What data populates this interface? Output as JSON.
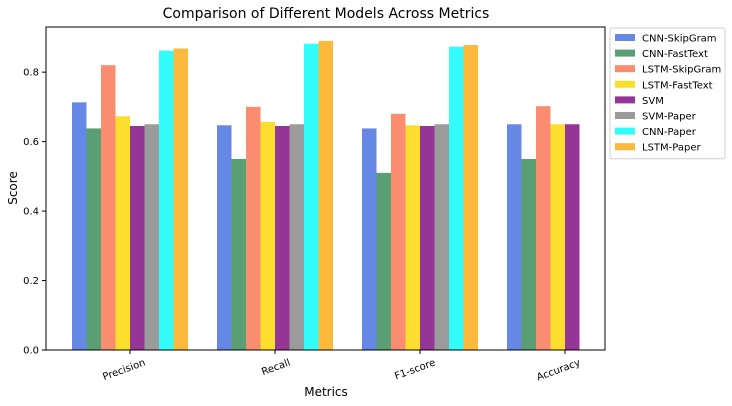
{
  "chart_data": {
    "type": "bar",
    "title": "Comparison of Different Models Across Metrics",
    "xlabel": "Metrics",
    "ylabel": "Score",
    "categories": [
      "Precision",
      "Recall",
      "F1-score",
      "Accuracy"
    ],
    "ylim": [
      0,
      0.93
    ],
    "yticks": [
      "0.0",
      "0.2",
      "0.4",
      "0.6",
      "0.8"
    ],
    "grid": false,
    "legend_position": "outside-top-right",
    "series": [
      {
        "name": "CNN-SkipGram",
        "color": "#6688e5",
        "values": [
          0.713,
          0.647,
          0.638,
          0.65
        ]
      },
      {
        "name": "CNN-FastText",
        "color": "#5a9e74",
        "values": [
          0.638,
          0.55,
          0.51,
          0.55
        ]
      },
      {
        "name": "LSTM-SkipGram",
        "color": "#fa8c6f",
        "values": [
          0.82,
          0.7,
          0.68,
          0.702
        ]
      },
      {
        "name": "LSTM-FastText",
        "color": "#fcde2f",
        "values": [
          0.673,
          0.657,
          0.647,
          0.65
        ]
      },
      {
        "name": "SVM",
        "color": "#953596",
        "values": [
          0.645,
          0.645,
          0.645,
          0.65
        ]
      },
      {
        "name": "SVM-Paper",
        "color": "#9b9b9b",
        "values": [
          0.65,
          0.65,
          0.65,
          null
        ]
      },
      {
        "name": "CNN-Paper",
        "color": "#33fcfb",
        "values": [
          0.862,
          0.882,
          0.873,
          null
        ]
      },
      {
        "name": "LSTM-Paper",
        "color": "#fcb93b",
        "values": [
          0.868,
          0.89,
          0.878,
          null
        ]
      }
    ]
  }
}
